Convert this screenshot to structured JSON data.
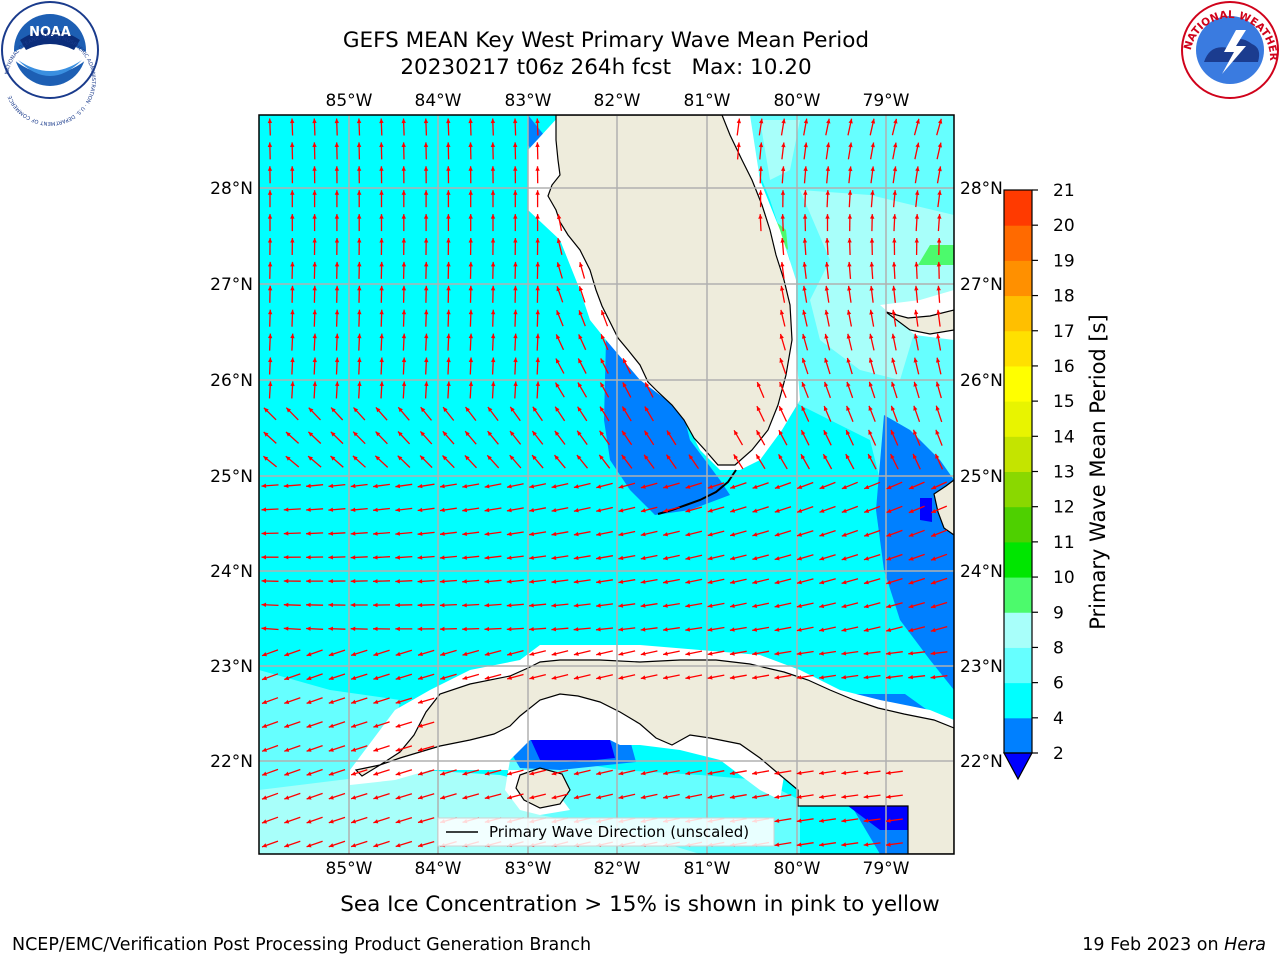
{
  "header": {
    "title_line1": "GEFS MEAN Key West Primary Wave Mean Period",
    "title_line2": "20230217 t06z 264h fcst   Max: 10.20"
  },
  "logos": {
    "left_agency": "NOAA",
    "left_ring_text": "NATIONAL OCEANIC AND ATMOSPHERIC ADMINISTRATION · U.S. DEPARTMENT OF COMMERCE",
    "right_ring_text": "NATIONAL WEATHER SERVICE"
  },
  "map": {
    "lon_ticks": [
      "85°W",
      "84°W",
      "83°W",
      "82°W",
      "81°W",
      "80°W",
      "79°W"
    ],
    "lat_ticks": [
      "28°N",
      "27°N",
      "26°N",
      "25°N",
      "24°N",
      "23°N",
      "22°N"
    ],
    "legend_label": "Primary Wave Direction (unscaled)",
    "colors": {
      "land": "#eeecdc",
      "ocean_4_6": "#00ffff",
      "ocean_6_8": "#66ffff",
      "ocean_8_9": "#a8fffa",
      "ocean_2_4": "#0080ff",
      "ocean_lt2": "#0000ff",
      "green_9_10": "#4cfa6c",
      "arrow": "#ff0000",
      "grid": "#b0b0b0"
    }
  },
  "colorbar": {
    "label": "Primary Wave Mean Period [s]",
    "ticks": [
      "2",
      "4",
      "6",
      "8",
      "9",
      "10",
      "11",
      "12",
      "13",
      "14",
      "15",
      "16",
      "17",
      "18",
      "19",
      "20",
      "21"
    ],
    "colors": [
      "#0080ff",
      "#00ffff",
      "#66ffff",
      "#a8fffa",
      "#4cfa6c",
      "#00e600",
      "#4ed000",
      "#8ad800",
      "#c4e400",
      "#e8f400",
      "#ffff00",
      "#ffe000",
      "#ffbf00",
      "#ff9000",
      "#ff6a00",
      "#ff3a00",
      "#ff0000"
    ],
    "under_color": "#0000ff"
  },
  "footer": {
    "sea_ice_note": "Sea Ice Concentration > 15% is shown in pink to yellow",
    "producer": "NCEP/EMC/Verification Post Processing Product Generation Branch",
    "date_prefix": "19 Feb 2023 on ",
    "machine": "Hera"
  }
}
